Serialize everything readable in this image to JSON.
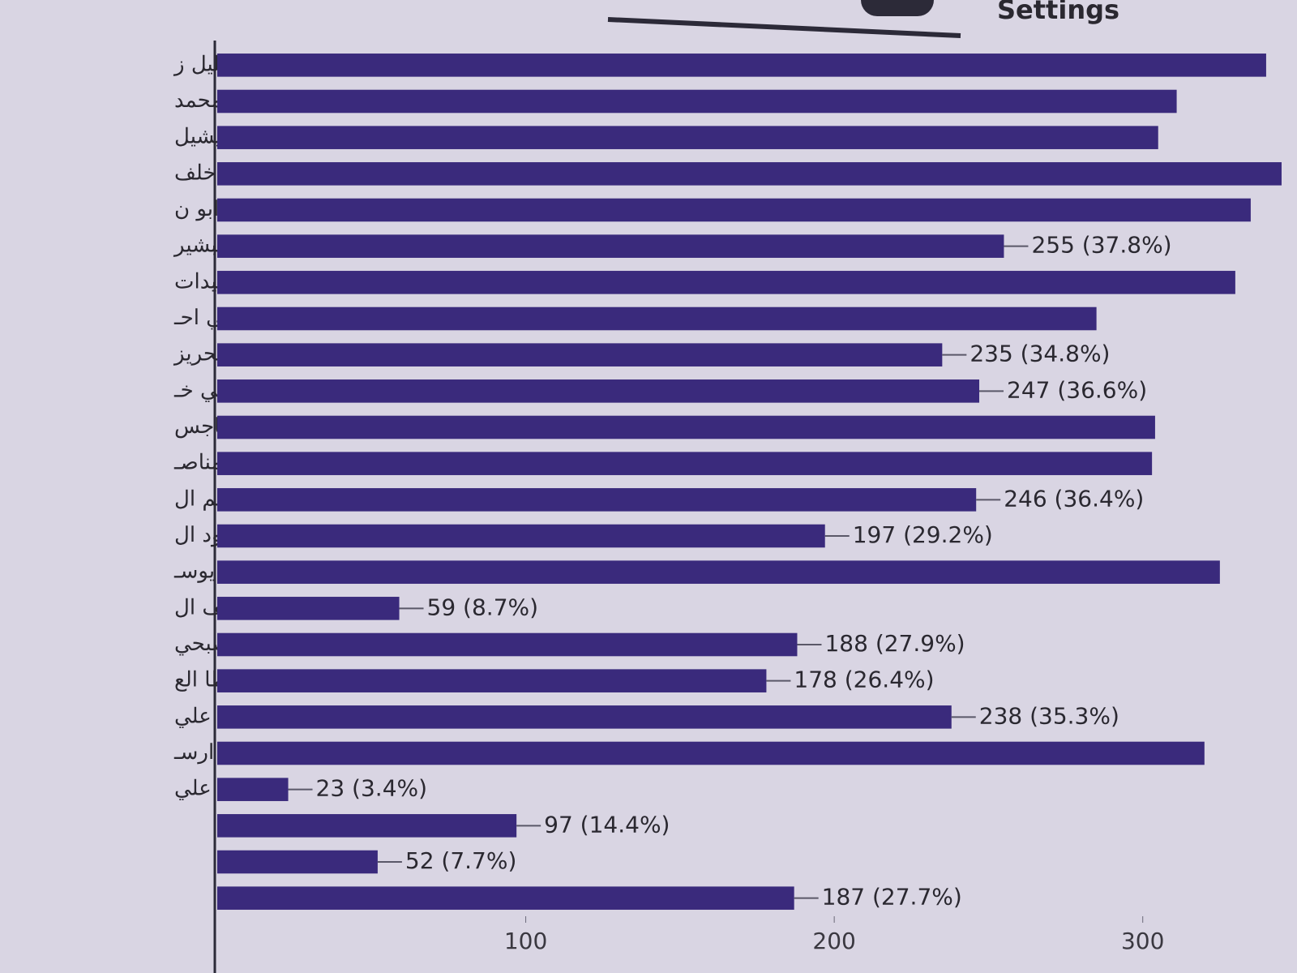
{
  "ui": {
    "tab": "Settings"
  },
  "chart_data": {
    "type": "bar",
    "orientation": "horizontal",
    "color": "#3a2a7c",
    "categories": [
      "قيس خليل ز",
      "عرفات محمد",
      "فائق ميشيل",
      "عدنان خلف",
      "حمادة ابو ن",
      "عامر البشير",
      "لارا عبيدات",
      "بسام علي احـ",
      "نهى محريز",
      "موسى بني خـ",
      "سامي باجس",
      "ابتسام المناصـ",
      "محمد سالم ال",
      "علا محمود ال",
      "مصطفى يوسـ",
      "ماجد ضيف ال",
      "سوسن صبحي",
      "فادي عطا الع",
      "بثينة زيد علي",
      "محمد طه ارسـ",
      "علي",
      null,
      null,
      null
    ],
    "values": [
      340,
      311,
      305,
      345,
      335,
      255,
      330,
      285,
      235,
      247,
      304,
      303,
      246,
      197,
      325,
      59,
      188,
      178,
      238,
      320,
      23,
      97,
      52,
      187
    ],
    "value_labels": [
      null,
      null,
      null,
      null,
      null,
      "255 (37.8%)",
      null,
      null,
      "235 (34.8%)",
      "247 (36.6%)",
      null,
      null,
      "246 (36.4%)",
      "197 (29.2%)",
      null,
      "59 (8.7%)",
      "188 (27.9%)",
      "178 (26.4%)",
      "238 (35.3%)",
      null,
      "23 (3.4%)",
      "97 (14.4%)",
      "52 (7.7%)",
      "187 (27.7%)"
    ],
    "xlim": [
      0,
      350
    ],
    "xticks": [
      100,
      200,
      300
    ]
  }
}
